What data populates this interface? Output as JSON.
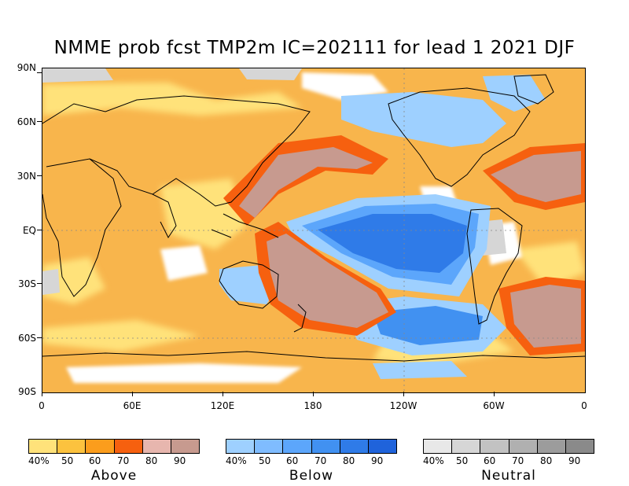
{
  "title": "NMME prob fcst TMP2m IC=202111 for lead 1 2021 DJF",
  "axes": {
    "lat_labels": [
      "90N",
      "60N",
      "30N",
      "EQ",
      "30S",
      "60S",
      "90S"
    ],
    "lon_labels": [
      "0",
      "60E",
      "120E",
      "180",
      "120W",
      "60W",
      "0"
    ]
  },
  "legends": [
    {
      "name": "Above",
      "tick_labels": [
        "40%",
        "50",
        "60",
        "70",
        "80",
        "90"
      ],
      "colors": [
        "#ffe27a",
        "#fcc23e",
        "#fb9d1c",
        "#f6600f",
        "#e7b6ae",
        "#c79a8f"
      ]
    },
    {
      "name": "Below",
      "tick_labels": [
        "40%",
        "50",
        "60",
        "70",
        "80",
        "90"
      ],
      "colors": [
        "#9ed0ff",
        "#7fbcff",
        "#5ca6fb",
        "#4191f1",
        "#2f7be8",
        "#1f63db"
      ]
    },
    {
      "name": "Neutral",
      "tick_labels": [
        "40%",
        "50",
        "60",
        "70",
        "80",
        "90"
      ],
      "colors": [
        "#e8e8e8",
        "#d6d6d6",
        "#c2c2c2",
        "#b0b0b0",
        "#9c9c9c",
        "#8a8a8a"
      ]
    }
  ],
  "colors": {
    "above_base": "#f7b24a",
    "frame": "#000000"
  }
}
